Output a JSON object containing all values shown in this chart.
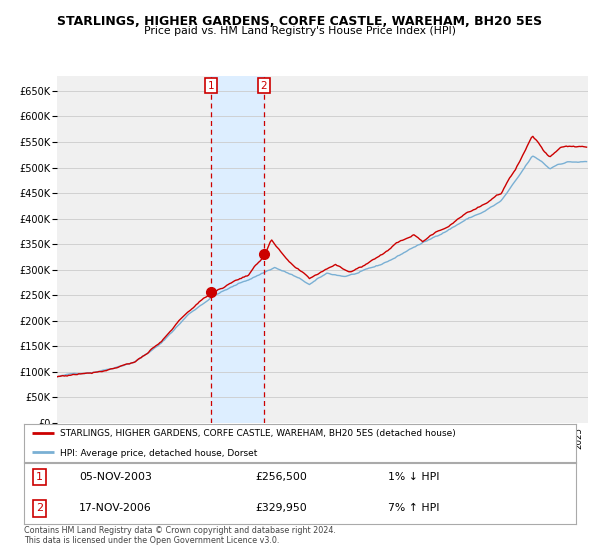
{
  "title": "STARLINGS, HIGHER GARDENS, CORFE CASTLE, WAREHAM, BH20 5ES",
  "subtitle": "Price paid vs. HM Land Registry's House Price Index (HPI)",
  "legend_line1": "STARLINGS, HIGHER GARDENS, CORFE CASTLE, WAREHAM, BH20 5ES (detached house)",
  "legend_line2": "HPI: Average price, detached house, Dorset",
  "footer1": "Contains HM Land Registry data © Crown copyright and database right 2024.",
  "footer2": "This data is licensed under the Open Government Licence v3.0.",
  "annotation1_date": "05-NOV-2003",
  "annotation1_price": "£256,500",
  "annotation1_hpi": "1% ↓ HPI",
  "annotation2_date": "17-NOV-2006",
  "annotation2_price": "£329,950",
  "annotation2_hpi": "7% ↑ HPI",
  "sale1_x": 2003.85,
  "sale1_y": 256500,
  "sale2_x": 2006.88,
  "sale2_y": 329950,
  "vline1_x": 2003.85,
  "vline2_x": 2006.88,
  "shade_x1": 2003.85,
  "shade_x2": 2006.88,
  "ylim": [
    0,
    680000
  ],
  "xlim_start": 1995.0,
  "xlim_end": 2025.5,
  "line_color_red": "#cc0000",
  "line_color_blue": "#7ab0d4",
  "dot_color": "#cc0000",
  "shade_color": "#ddeeff",
  "vline_color": "#cc0000",
  "grid_color": "#cccccc",
  "bg_color": "#ffffff",
  "plot_bg_color": "#f0f0f0"
}
